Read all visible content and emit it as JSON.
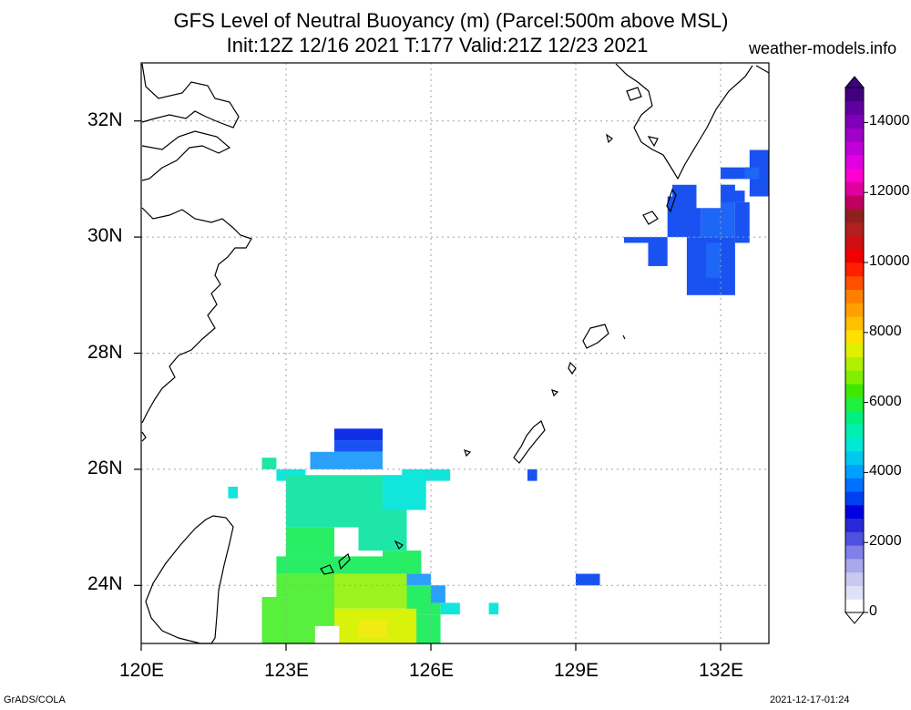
{
  "title": {
    "line1": "GFS Level of Neutral Buoyancy (m) (Parcel:500m above MSL)",
    "line2": "Init:12Z 12/16 2021 T:177 Valid:21Z 12/23 2021"
  },
  "site": "weather-models.info",
  "footer": {
    "left": "GrADS/COLA",
    "right": "2021-12-17-01:24"
  },
  "map": {
    "lon_range": [
      120,
      133
    ],
    "lat_range": [
      23,
      33
    ],
    "x_ticks": [
      {
        "v": 120,
        "label": "120E"
      },
      {
        "v": 123,
        "label": "123E"
      },
      {
        "v": 126,
        "label": "126E"
      },
      {
        "v": 129,
        "label": "129E"
      },
      {
        "v": 132,
        "label": "132E"
      }
    ],
    "y_ticks": [
      {
        "v": 24,
        "label": "24N"
      },
      {
        "v": 26,
        "label": "26N"
      },
      {
        "v": 28,
        "label": "28N"
      },
      {
        "v": 30,
        "label": "30N"
      },
      {
        "v": 32,
        "label": "32N"
      }
    ],
    "grid_lons": [
      123,
      126,
      129,
      132
    ],
    "grid_lats": [
      24,
      26,
      28,
      30,
      32
    ]
  },
  "colorbar": {
    "min": 0,
    "max": 15000,
    "labels": [
      "0",
      "2000",
      "4000",
      "6000",
      "8000",
      "10000",
      "12000",
      "14000"
    ],
    "colors": [
      "#ffffff",
      "#e0e0f8",
      "#c8c8f0",
      "#a8a8ec",
      "#8080e8",
      "#5050e0",
      "#2828d8",
      "#0000e0",
      "#0040f0",
      "#0070ff",
      "#00a0ff",
      "#00c8f0",
      "#00e8d8",
      "#00f0b0",
      "#00f080",
      "#20f040",
      "#40e800",
      "#80f000",
      "#b0f000",
      "#e0f000",
      "#ffe000",
      "#ffc000",
      "#ffa000",
      "#ff8000",
      "#ff5000",
      "#ff2000",
      "#f00000",
      "#d01010",
      "#b02020",
      "#902020",
      "#c00060",
      "#e000a0",
      "#ff00d0",
      "#e000e0",
      "#c000d8",
      "#a000c8",
      "#8000b8",
      "#6000a0",
      "#400080"
    ]
  },
  "field_colors": {
    "deep_blue": "#0f2ee8",
    "blue": "#1a52f2",
    "blue2": "#1e66f5",
    "light_blue": "#2aa0fa",
    "cyan": "#12e6dc",
    "teal": "#1ee6a8",
    "green": "#28ee66",
    "lgreen": "#58f03c",
    "lime": "#9cf21e",
    "yellow": "#d8f20a",
    "yellow2": "#f2ea14"
  }
}
